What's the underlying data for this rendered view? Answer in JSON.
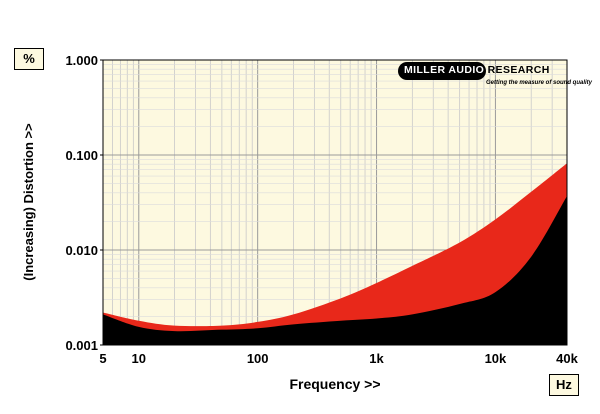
{
  "chart_data": {
    "type": "area",
    "xlabel": "Frequency >>",
    "ylabel": "(Increasing) Distortion >>",
    "x_unit": "Hz",
    "y_unit": "%",
    "x_scale": "log",
    "y_scale": "log",
    "xlim": [
      5,
      40000
    ],
    "ylim": [
      0.001,
      1.0
    ],
    "grid": true,
    "x_ticks": [
      5,
      10,
      100,
      1000,
      10000,
      40000
    ],
    "x_tick_labels": [
      "5",
      "10",
      "100",
      "1k",
      "10k",
      "40k"
    ],
    "y_ticks": [
      0.001,
      0.01,
      0.1,
      1.0
    ],
    "y_tick_labels": [
      "0.001",
      "0.010",
      "0.100",
      "1.000"
    ],
    "x": [
      5,
      10,
      20,
      50,
      100,
      200,
      500,
      1000,
      2000,
      5000,
      10000,
      20000,
      40000
    ],
    "series": [
      {
        "color": "#e8281a",
        "values": [
          0.0022,
          0.0018,
          0.0016,
          0.0016,
          0.00175,
          0.0021,
          0.0031,
          0.0045,
          0.0068,
          0.012,
          0.021,
          0.041,
          0.082
        ]
      },
      {
        "color": "#000000",
        "values": [
          0.0021,
          0.00155,
          0.0014,
          0.00145,
          0.0015,
          0.00165,
          0.0018,
          0.0019,
          0.0021,
          0.0027,
          0.0036,
          0.0085,
          0.037
        ]
      }
    ],
    "background_color": "#fdf9e0"
  },
  "logo": {
    "name_white": "MILLER AUDIO",
    "name_black": " RESEARCH",
    "tagline": "Getting the measure of sound quality"
  }
}
